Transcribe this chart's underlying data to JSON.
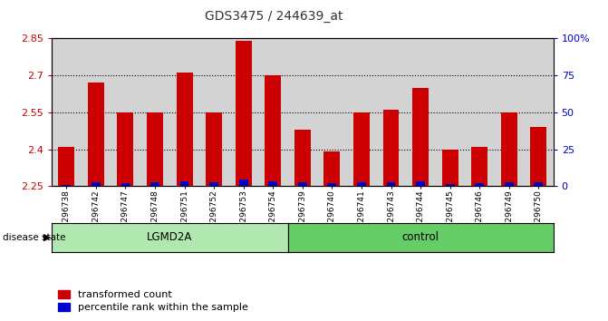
{
  "title": "GDS3475 / 244639_at",
  "samples": [
    "GSM296738",
    "GSM296742",
    "GSM296747",
    "GSM296748",
    "GSM296751",
    "GSM296752",
    "GSM296753",
    "GSM296754",
    "GSM296739",
    "GSM296740",
    "GSM296741",
    "GSM296743",
    "GSM296744",
    "GSM296745",
    "GSM296746",
    "GSM296749",
    "GSM296750"
  ],
  "transformed_count": [
    2.41,
    2.67,
    2.55,
    2.55,
    2.71,
    2.55,
    2.84,
    2.7,
    2.48,
    2.39,
    2.55,
    2.56,
    2.65,
    2.4,
    2.41,
    2.55,
    2.49
  ],
  "percentile_values": [
    2,
    8,
    6,
    7,
    10,
    7,
    12,
    9,
    7,
    5,
    8,
    8,
    9,
    4,
    5,
    8,
    7
  ],
  "lgmd2a_count": 8,
  "control_count": 9,
  "ymin": 2.25,
  "ymax": 2.85,
  "yticks": [
    2.25,
    2.4,
    2.55,
    2.7,
    2.85
  ],
  "right_yticks": [
    0,
    25,
    50,
    75,
    100
  ],
  "bar_color": "#cc0000",
  "percentile_color": "#0000cc",
  "bar_width": 0.55,
  "axis_bg": "#d3d3d3",
  "left_tick_color": "#cc0000",
  "right_tick_color": "#0000cc",
  "lgmd2a_color": "#b0e8b0",
  "control_color": "#66cc66",
  "legend_items": [
    "transformed count",
    "percentile rank within the sample"
  ]
}
